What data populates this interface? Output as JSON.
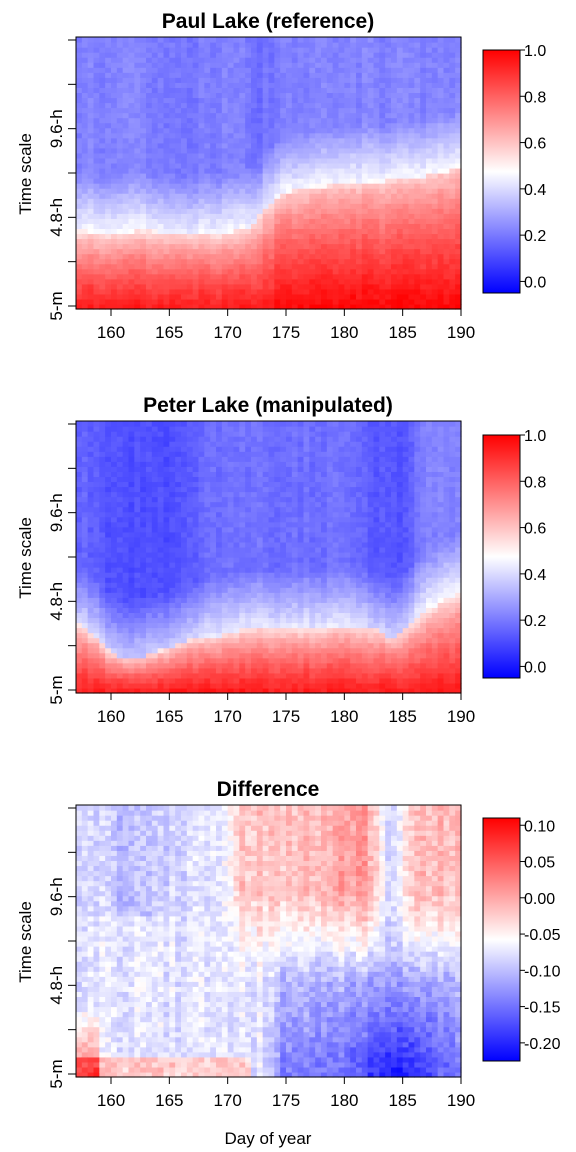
{
  "chart_data": [
    {
      "type": "heatmap",
      "title": "Paul Lake (reference)",
      "xlabel": "",
      "ylabel": "Time scale",
      "xlim": [
        157,
        190
      ],
      "x_ticks": [
        160,
        165,
        170,
        175,
        180,
        185,
        190
      ],
      "y_ticks": [
        "5-m",
        "4.8-h",
        "9.6-h"
      ],
      "colorbar_range": [
        -0.05,
        1.0
      ],
      "colorbar_ticks": [
        "1.0",
        "0.8",
        "0.6",
        "0.4",
        "0.2",
        "0.0"
      ],
      "colormap": [
        "#0000ff",
        "#ffffff",
        "#ff0000"
      ],
      "boundary": {
        "day": [
          157,
          160,
          163,
          166,
          169,
          171,
          172,
          173,
          174,
          176,
          178,
          180,
          183,
          186,
          188,
          190
        ],
        "scale_fraction": [
          0.29,
          0.28,
          0.29,
          0.28,
          0.28,
          0.29,
          0.31,
          0.36,
          0.41,
          0.44,
          0.45,
          0.46,
          0.47,
          0.48,
          0.5,
          0.52
        ]
      }
    },
    {
      "type": "heatmap",
      "title": "Peter Lake (manipulated)",
      "xlabel": "",
      "ylabel": "Time scale",
      "xlim": [
        157,
        190
      ],
      "x_ticks": [
        160,
        165,
        170,
        175,
        180,
        185,
        190
      ],
      "y_ticks": [
        "5-m",
        "4.8-h",
        "9.6-h"
      ],
      "colorbar_range": [
        -0.05,
        1.0
      ],
      "colorbar_ticks": [
        "1.0",
        "0.8",
        "0.6",
        "0.4",
        "0.2",
        "0.0"
      ],
      "colormap": [
        "#0000ff",
        "#ffffff",
        "#ff0000"
      ],
      "boundary": {
        "day": [
          157,
          159,
          160,
          161,
          163,
          165,
          167,
          169,
          172,
          175,
          178,
          180,
          183,
          184,
          186,
          188,
          190
        ],
        "scale_fraction": [
          0.26,
          0.2,
          0.15,
          0.13,
          0.14,
          0.17,
          0.2,
          0.21,
          0.24,
          0.24,
          0.24,
          0.25,
          0.24,
          0.2,
          0.27,
          0.33,
          0.37
        ]
      }
    },
    {
      "type": "heatmap",
      "title": "Difference",
      "xlabel": "Day of year",
      "ylabel": "Time scale",
      "xlim": [
        157,
        190
      ],
      "x_ticks": [
        160,
        165,
        170,
        175,
        180,
        185,
        190
      ],
      "y_ticks": [
        "5-m",
        "4.8-h",
        "9.6-h"
      ],
      "colorbar_range": [
        -0.225,
        0.11
      ],
      "colorbar_ticks": [
        "0.10",
        "0.05",
        "0.00",
        "-0.05",
        "-0.10",
        "-0.15",
        "-0.20"
      ],
      "colormap": [
        "#0000ff",
        "#ffffff",
        "#ff0000"
      ]
    }
  ]
}
